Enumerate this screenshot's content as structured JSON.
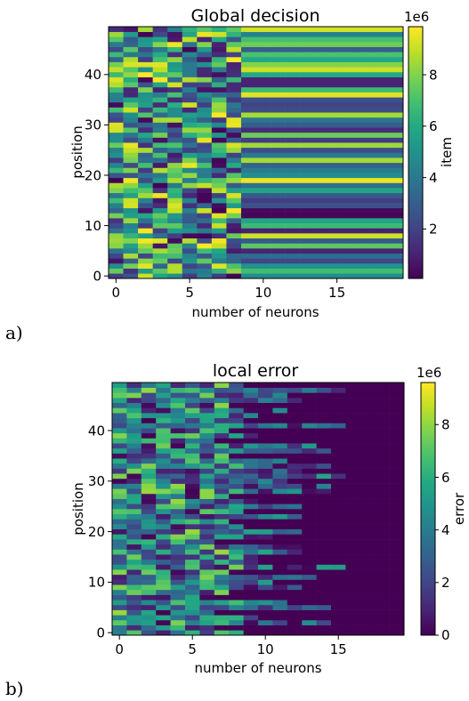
{
  "figure": {
    "panel_a_label": "a)",
    "panel_b_label": "b)"
  },
  "chart_data": [
    {
      "type": "heatmap",
      "title": "Global decision",
      "xlabel": "number of neurons",
      "ylabel": "position",
      "x_ticks": [
        "0",
        "5",
        "10",
        "15"
      ],
      "y_ticks": [
        "0",
        "10",
        "20",
        "30",
        "40"
      ],
      "xlim": [
        -0.5,
        19.5
      ],
      "ylim": [
        -0.5,
        49.5
      ],
      "colorbar": {
        "label": "item",
        "multiplier": "1e6",
        "ticks": [
          "2",
          "4",
          "6",
          "8"
        ],
        "range": [
          0.1,
          9.9
        ],
        "colormap": "viridis"
      },
      "cols": 20,
      "rows": 50,
      "seed": 7
    },
    {
      "type": "heatmap",
      "title": "local error",
      "xlabel": "number of neurons",
      "ylabel": "position",
      "x_ticks": [
        "0",
        "5",
        "10",
        "15"
      ],
      "y_ticks": [
        "0",
        "10",
        "20",
        "30",
        "40"
      ],
      "xlim": [
        -0.5,
        19.5
      ],
      "ylim": [
        -0.5,
        49.5
      ],
      "colorbar": {
        "label": "error",
        "multiplier": "1e6",
        "ticks": [
          "0",
          "2",
          "4",
          "6",
          "8"
        ],
        "range": [
          0,
          9.6
        ],
        "colormap": "viridis"
      },
      "cols": 20,
      "rows": 50,
      "seed": 19
    }
  ]
}
